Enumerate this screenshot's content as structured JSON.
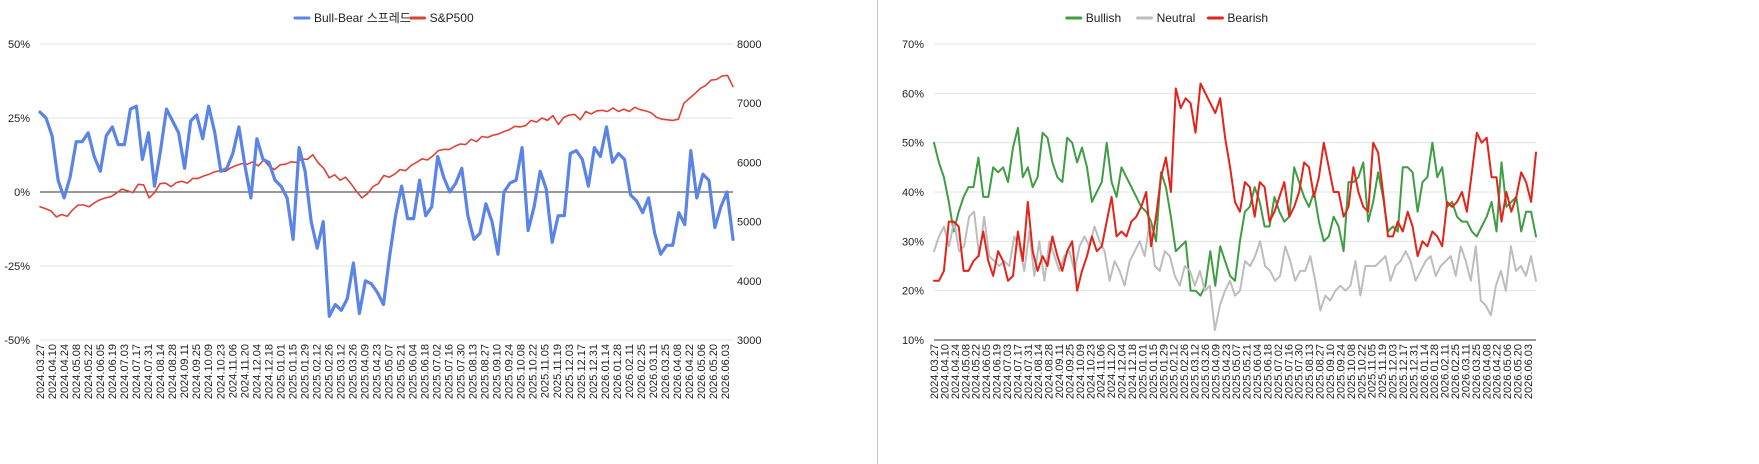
{
  "chart_data": [
    {
      "type": "line",
      "legend_position": "top",
      "grid": true,
      "ylim_left": [
        -0.5,
        0.5
      ],
      "yticks_left": [
        "50%",
        "25%",
        "0%",
        "-25%",
        "-50%"
      ],
      "ylim_right": [
        3000,
        8000
      ],
      "yticks_right": [
        "8000",
        "7000",
        "6000",
        "5000",
        "4000",
        "3000"
      ],
      "x_tick_labels": [
        "2024.03.27",
        "2024.04.10",
        "2024.04.24",
        "2024.05.08",
        "2024.05.22",
        "2024.06.05",
        "2024.06.19",
        "2024.07.03",
        "2024.07.17",
        "2024.07.31",
        "2024.08.14",
        "2024.08.28",
        "2024.09.11",
        "2024.09.25",
        "2024.10.09",
        "2024.10.23",
        "2024.11.06",
        "2024.11.20",
        "2024.12.04",
        "2024.12.18",
        "2025.01.01",
        "2025.01.15",
        "2025.01.29",
        "2025.02.12",
        "2025.02.26",
        "2025.03.12",
        "2025.03.26",
        "2025.04.09",
        "2025.04.23",
        "2025.05.07",
        "2025.05.21",
        "2025.06.04",
        "2025.06.18",
        "2025.07.02",
        "2025.07.16",
        "2025.07.30",
        "2025.08.13",
        "2025.08.27",
        "2025.09.10",
        "2025.09.24",
        "2025.10.08",
        "2025.10.22",
        "2025.11.05",
        "2025.11.19",
        "2025.12.03",
        "2025.12.17",
        "2025.12.31",
        "2026.01.14",
        "2026.01.28",
        "2026.02.11",
        "2026.02.25",
        "2026.03.11",
        "2026.03.25",
        "2026.04.08",
        "2026.04.22",
        "2026.05.06",
        "2026.05.20",
        "2026.06.03"
      ],
      "series": [
        {
          "name": "Bull-Bear 스프레드",
          "axis": "left",
          "color": "#5a84e6",
          "values": [
            0.27,
            0.25,
            0.19,
            0.04,
            -0.02,
            0.05,
            0.17,
            0.17,
            0.2,
            0.12,
            0.07,
            0.19,
            0.22,
            0.16,
            0.16,
            0.28,
            0.29,
            0.11,
            0.2,
            0.02,
            0.14,
            0.28,
            0.24,
            0.2,
            0.08,
            0.24,
            0.26,
            0.18,
            0.29,
            0.2,
            0.07,
            0.08,
            0.13,
            0.22,
            0.09,
            -0.02,
            0.18,
            0.11,
            0.1,
            0.04,
            0.02,
            -0.02,
            -0.16,
            0.15,
            0.07,
            -0.1,
            -0.19,
            -0.1,
            -0.42,
            -0.38,
            -0.4,
            -0.36,
            -0.24,
            -0.41,
            -0.3,
            -0.31,
            -0.34,
            -0.38,
            -0.22,
            -0.08,
            0.02,
            -0.09,
            -0.09,
            0.04,
            -0.08,
            -0.05,
            0.12,
            0.05,
            0.0,
            0.03,
            0.08,
            -0.08,
            -0.16,
            -0.14,
            -0.04,
            -0.1,
            -0.21,
            0.0,
            0.03,
            0.04,
            0.15,
            -0.13,
            -0.05,
            0.07,
            0.01,
            -0.17,
            -0.08,
            -0.08,
            0.13,
            0.14,
            0.11,
            0.02,
            0.15,
            0.12,
            0.22,
            0.1,
            0.13,
            0.11,
            -0.01,
            -0.03,
            -0.07,
            -0.02,
            -0.14,
            -0.21,
            -0.18,
            -0.18,
            -0.07,
            -0.11,
            0.14,
            -0.02,
            0.06,
            0.04,
            -0.12,
            -0.05,
            0.0,
            -0.16
          ]
        },
        {
          "name": "S&P500",
          "axis": "right",
          "color": "#db4437",
          "values": [
            5250,
            5220,
            5180,
            5080,
            5120,
            5090,
            5200,
            5280,
            5280,
            5250,
            5320,
            5370,
            5400,
            5420,
            5480,
            5550,
            5520,
            5490,
            5630,
            5620,
            5400,
            5490,
            5640,
            5650,
            5590,
            5660,
            5680,
            5650,
            5730,
            5730,
            5770,
            5800,
            5840,
            5860,
            5850,
            5910,
            5950,
            5980,
            5970,
            6010,
            5940,
            6040,
            5930,
            5880,
            5960,
            5970,
            6010,
            6000,
            6060,
            6050,
            6130,
            5990,
            5900,
            5740,
            5790,
            5700,
            5750,
            5640,
            5510,
            5400,
            5470,
            5590,
            5640,
            5780,
            5750,
            5800,
            5880,
            5860,
            5950,
            6000,
            6060,
            6040,
            6110,
            6200,
            6220,
            6220,
            6270,
            6310,
            6300,
            6390,
            6350,
            6440,
            6420,
            6460,
            6480,
            6520,
            6550,
            6610,
            6600,
            6620,
            6710,
            6680,
            6750,
            6710,
            6790,
            6640,
            6760,
            6800,
            6810,
            6720,
            6860,
            6820,
            6870,
            6880,
            6860,
            6920,
            6860,
            6900,
            6860,
            6930,
            6890,
            6870,
            6840,
            6760,
            6730,
            6720,
            6710,
            6730,
            7000,
            7080,
            7160,
            7250,
            7300,
            7390,
            7400,
            7460,
            7470,
            7280
          ]
        }
      ]
    },
    {
      "type": "line",
      "legend_position": "top",
      "grid": true,
      "ylim": [
        0.1,
        0.7
      ],
      "yticks": [
        "70%",
        "60%",
        "50%",
        "40%",
        "30%",
        "20%",
        "10%"
      ],
      "x_tick_labels": [
        "2024.03.27",
        "2024.04.10",
        "2024.04.24",
        "2024.05.08",
        "2024.05.22",
        "2024.06.05",
        "2024.06.19",
        "2024.07.03",
        "2024.07.17",
        "2024.07.31",
        "2024.08.14",
        "2024.08.28",
        "2024.09.11",
        "2024.09.25",
        "2024.10.09",
        "2024.10.23",
        "2024.11.06",
        "2024.11.20",
        "2024.12.04",
        "2024.12.18",
        "2025.01.01",
        "2025.01.15",
        "2025.01.29",
        "2025.02.12",
        "2025.02.26",
        "2025.03.12",
        "2025.03.26",
        "2025.04.09",
        "2025.04.23",
        "2025.05.07",
        "2025.05.21",
        "2025.06.04",
        "2025.06.18",
        "2025.07.02",
        "2025.07.16",
        "2025.07.30",
        "2025.08.13",
        "2025.08.27",
        "2025.09.10",
        "2025.09.24",
        "2025.10.08",
        "2025.10.22",
        "2025.11.05",
        "2025.11.19",
        "2025.12.03",
        "2025.12.17",
        "2025.12.31",
        "2026.01.14",
        "2026.01.28",
        "2026.02.11",
        "2026.02.25",
        "2026.03.11",
        "2026.03.25",
        "2026.04.08",
        "2026.04.22",
        "2026.05.06",
        "2026.05.20",
        "2026.06.03"
      ],
      "series": [
        {
          "name": "Bullish",
          "color": "#3f9d44",
          "values": [
            0.5,
            0.46,
            0.43,
            0.38,
            0.32,
            0.36,
            0.39,
            0.41,
            0.41,
            0.47,
            0.39,
            0.39,
            0.45,
            0.44,
            0.45,
            0.42,
            0.49,
            0.53,
            0.43,
            0.45,
            0.41,
            0.43,
            0.52,
            0.51,
            0.46,
            0.43,
            0.42,
            0.51,
            0.5,
            0.46,
            0.49,
            0.45,
            0.38,
            0.4,
            0.42,
            0.5,
            0.42,
            0.39,
            0.45,
            0.43,
            0.41,
            0.39,
            0.37,
            0.36,
            0.34,
            0.3,
            0.44,
            0.41,
            0.35,
            0.28,
            0.29,
            0.3,
            0.2,
            0.2,
            0.19,
            0.21,
            0.28,
            0.21,
            0.29,
            0.26,
            0.23,
            0.22,
            0.3,
            0.36,
            0.37,
            0.41,
            0.38,
            0.33,
            0.33,
            0.39,
            0.36,
            0.34,
            0.35,
            0.45,
            0.42,
            0.39,
            0.37,
            0.4,
            0.34,
            0.3,
            0.31,
            0.35,
            0.33,
            0.28,
            0.42,
            0.42,
            0.43,
            0.46,
            0.34,
            0.38,
            0.44,
            0.39,
            0.32,
            0.33,
            0.32,
            0.45,
            0.45,
            0.44,
            0.36,
            0.42,
            0.43,
            0.5,
            0.43,
            0.45,
            0.37,
            0.38,
            0.35,
            0.34,
            0.34,
            0.32,
            0.31,
            0.33,
            0.35,
            0.38,
            0.32,
            0.46,
            0.37,
            0.38,
            0.39,
            0.32,
            0.36,
            0.36,
            0.31
          ]
        },
        {
          "name": "Neutral",
          "color": "#bdbdbd",
          "values": [
            0.28,
            0.31,
            0.33,
            0.29,
            0.34,
            0.28,
            0.29,
            0.35,
            0.36,
            0.27,
            0.35,
            0.27,
            0.26,
            0.25,
            0.26,
            0.25,
            0.31,
            0.29,
            0.24,
            0.32,
            0.23,
            0.3,
            0.22,
            0.3,
            0.27,
            0.24,
            0.27,
            0.28,
            0.24,
            0.29,
            0.31,
            0.29,
            0.33,
            0.3,
            0.28,
            0.22,
            0.26,
            0.24,
            0.21,
            0.26,
            0.28,
            0.3,
            0.27,
            0.34,
            0.25,
            0.24,
            0.28,
            0.27,
            0.23,
            0.21,
            0.25,
            0.24,
            0.21,
            0.24,
            0.2,
            0.21,
            0.12,
            0.17,
            0.2,
            0.22,
            0.19,
            0.2,
            0.26,
            0.25,
            0.27,
            0.3,
            0.25,
            0.24,
            0.22,
            0.23,
            0.29,
            0.26,
            0.22,
            0.24,
            0.24,
            0.27,
            0.22,
            0.16,
            0.19,
            0.18,
            0.2,
            0.21,
            0.2,
            0.21,
            0.26,
            0.19,
            0.25,
            0.25,
            0.25,
            0.26,
            0.27,
            0.22,
            0.25,
            0.26,
            0.28,
            0.26,
            0.22,
            0.24,
            0.26,
            0.27,
            0.23,
            0.25,
            0.26,
            0.27,
            0.23,
            0.29,
            0.26,
            0.22,
            0.29,
            0.18,
            0.17,
            0.15,
            0.21,
            0.24,
            0.2,
            0.29,
            0.24,
            0.25,
            0.23,
            0.27,
            0.22
          ]
        },
        {
          "name": "Bearish",
          "color": "#e3241b",
          "values": [
            0.22,
            0.22,
            0.24,
            0.34,
            0.34,
            0.33,
            0.24,
            0.24,
            0.26,
            0.27,
            0.32,
            0.26,
            0.23,
            0.28,
            0.26,
            0.22,
            0.23,
            0.32,
            0.26,
            0.38,
            0.28,
            0.24,
            0.27,
            0.25,
            0.31,
            0.27,
            0.24,
            0.28,
            0.3,
            0.2,
            0.24,
            0.27,
            0.31,
            0.28,
            0.29,
            0.34,
            0.39,
            0.31,
            0.32,
            0.31,
            0.34,
            0.35,
            0.37,
            0.4,
            0.29,
            0.35,
            0.43,
            0.47,
            0.4,
            0.61,
            0.57,
            0.59,
            0.58,
            0.52,
            0.62,
            0.6,
            0.58,
            0.56,
            0.59,
            0.51,
            0.45,
            0.38,
            0.36,
            0.42,
            0.41,
            0.35,
            0.42,
            0.41,
            0.34,
            0.36,
            0.39,
            0.42,
            0.35,
            0.37,
            0.4,
            0.46,
            0.45,
            0.39,
            0.43,
            0.5,
            0.45,
            0.4,
            0.4,
            0.35,
            0.37,
            0.45,
            0.4,
            0.37,
            0.36,
            0.5,
            0.48,
            0.4,
            0.31,
            0.31,
            0.34,
            0.32,
            0.36,
            0.33,
            0.27,
            0.3,
            0.29,
            0.32,
            0.31,
            0.29,
            0.38,
            0.37,
            0.38,
            0.4,
            0.36,
            0.44,
            0.52,
            0.5,
            0.51,
            0.43,
            0.43,
            0.34,
            0.4,
            0.36,
            0.39,
            0.44,
            0.42,
            0.38,
            0.48
          ]
        }
      ]
    }
  ]
}
